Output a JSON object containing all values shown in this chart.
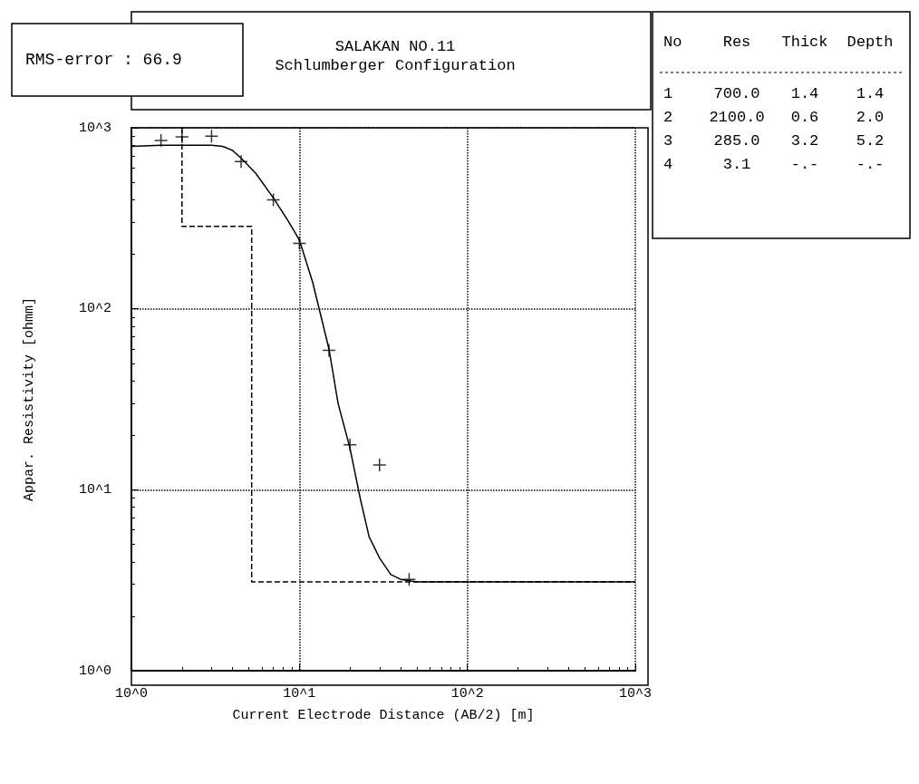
{
  "chart_data": {
    "type": "scatter",
    "title": "SALAKAN NO.11",
    "subtitle": "Schlumberger Configuration",
    "xlabel": "Current Electrode Distance (AB/2) [m]",
    "ylabel": "Appar. Resistivity [ohmm]",
    "log": "xy",
    "grid": true,
    "marker": "cross",
    "xlim": [
      1,
      1000
    ],
    "ylim": [
      1,
      1000
    ],
    "xticks": [
      {
        "value": 1,
        "label": "10^0"
      },
      {
        "value": 10,
        "label": "10^1"
      },
      {
        "value": 100,
        "label": "10^2"
      },
      {
        "value": 1000,
        "label": "10^3"
      }
    ],
    "yticks": [
      {
        "value": 1,
        "label": "10^0"
      },
      {
        "value": 10,
        "label": "10^1"
      },
      {
        "value": 100,
        "label": "10^2"
      },
      {
        "value": 1000,
        "label": "10^3"
      }
    ],
    "annotations": [
      "RMS-error : 66.9",
      "No",
      "Res",
      "Thick",
      "Depth",
      "1",
      "700.0",
      "1.4",
      "1.4",
      "2",
      "2100.0",
      "0.6",
      "2.0",
      "3",
      "285.0",
      "3.2",
      "5.2",
      "4",
      "3.1",
      "-.-",
      "-.-"
    ],
    "series": [
      {
        "color": "#000000",
        "x": [
          1.5,
          2,
          3,
          4.5,
          7,
          10,
          15,
          20,
          30,
          45
        ],
        "values": [
          850,
          890,
          900,
          650,
          400,
          230,
          59,
          17.7,
          13.7,
          3.2
        ]
      },
      {
        "type": "line",
        "color": "#000000",
        "line_style": "solid",
        "marker": "none",
        "x": [
          1,
          1.5,
          2,
          3,
          3.5,
          4,
          4.5,
          5.5,
          7,
          8.5,
          10,
          12,
          15,
          17,
          20,
          23,
          26,
          30,
          35,
          40,
          50,
          100,
          1000
        ],
        "values": [
          790,
          800,
          800,
          800,
          790,
          750,
          680,
          560,
          410,
          310,
          240,
          140,
          60,
          30,
          17,
          9,
          5.5,
          4.2,
          3.4,
          3.2,
          3.1,
          3.1,
          3.1
        ]
      },
      {
        "type": "step",
        "color": "#000000",
        "line_style": "dashed",
        "marker": "none",
        "x": [
          2,
          2,
          5.2,
          1000
        ],
        "values": [
          1000,
          285,
          3.1,
          3.1
        ]
      }
    ]
  }
}
